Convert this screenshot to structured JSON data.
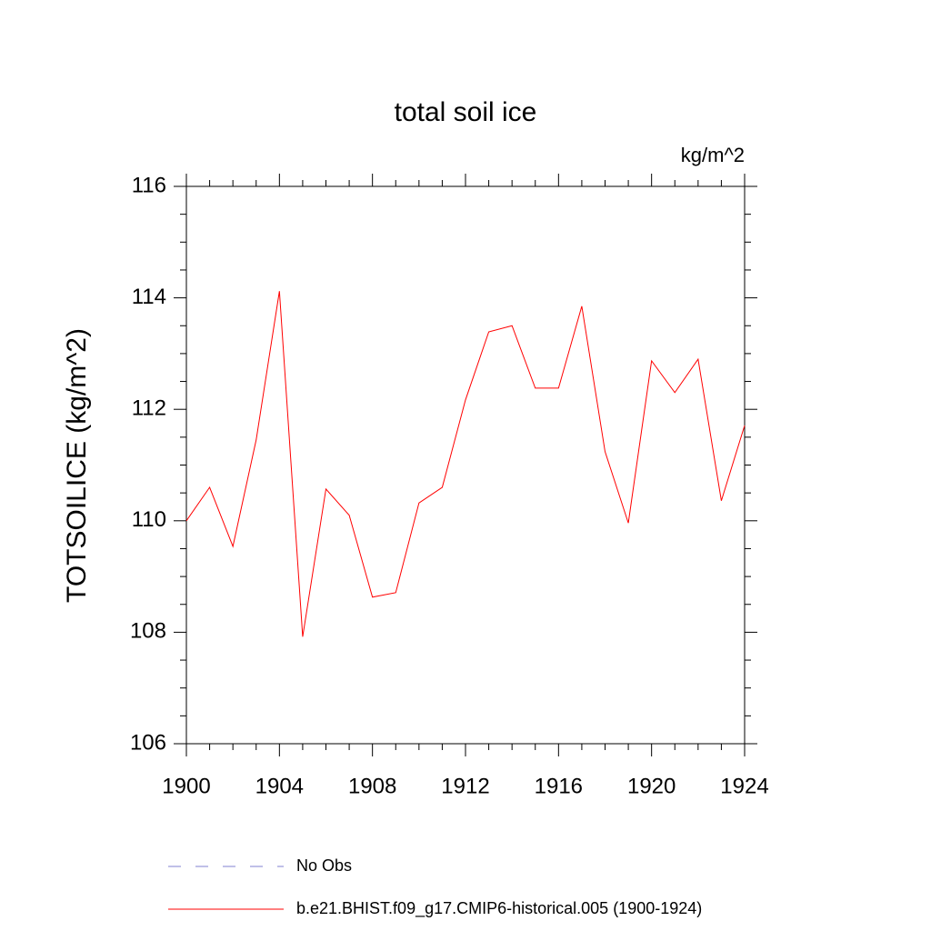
{
  "chart_data": {
    "type": "line",
    "title": "total soil ice",
    "units": "kg/m^2",
    "y_label": "TOTSOILICE  (kg/m^2)",
    "x": [
      1900,
      1901,
      1902,
      1903,
      1904,
      1905,
      1906,
      1907,
      1908,
      1909,
      1910,
      1911,
      1912,
      1913,
      1914,
      1915,
      1916,
      1917,
      1918,
      1919,
      1920,
      1921,
      1922,
      1923,
      1924
    ],
    "series": [
      {
        "name": "No Obs",
        "color": "#8080d0",
        "dashed": true,
        "values": [
          null,
          null,
          null,
          null,
          null,
          null,
          null,
          null,
          null,
          null,
          null,
          null,
          null,
          null,
          null,
          null,
          null,
          null,
          null,
          null,
          null,
          null,
          null,
          null,
          null
        ]
      },
      {
        "name": "b.e21.BHIST.f09_g17.CMIP6-historical.005 (1900-1924)",
        "color": "#ff0000",
        "dashed": false,
        "values": [
          110.0,
          110.6,
          109.54,
          111.45,
          114.12,
          107.92,
          110.57,
          110.1,
          108.63,
          108.71,
          110.32,
          110.6,
          112.17,
          113.39,
          113.5,
          112.38,
          112.38,
          113.85,
          111.24,
          109.96,
          112.87,
          112.3,
          112.9,
          110.36,
          111.71
        ]
      }
    ],
    "xlim": [
      1900,
      1924
    ],
    "xticks": [
      1900,
      1904,
      1908,
      1912,
      1916,
      1920,
      1924
    ],
    "xminorticks": [
      1901,
      1902,
      1903,
      1905,
      1906,
      1907,
      1909,
      1910,
      1911,
      1913,
      1914,
      1915,
      1917,
      1918,
      1919,
      1921,
      1922,
      1923
    ],
    "ylim": [
      106,
      116
    ],
    "yticks": [
      106,
      108,
      110,
      112,
      114,
      116
    ],
    "yminorticks": [
      106.5,
      107,
      107.5,
      108.5,
      109,
      109.5,
      110.5,
      111,
      111.5,
      112.5,
      113,
      113.5,
      114.5,
      115,
      115.5
    ]
  }
}
